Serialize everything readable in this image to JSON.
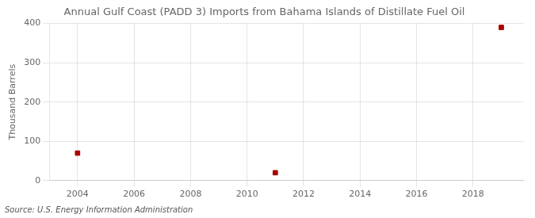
{
  "chart_data": {
    "type": "scatter",
    "title": "Annual Gulf Coast (PADD 3) Imports from Bahama Islands of Distillate Fuel Oil",
    "ylabel": "Thousand Barrels",
    "annotation": "Source: U.S. Energy Information Administration",
    "x": [
      2004,
      2011,
      2019
    ],
    "values": [
      70,
      20,
      390
    ],
    "color": "#aa0000",
    "marker": "square",
    "xlim": [
      2003.0,
      2019.8
    ],
    "ylim": [
      0,
      400
    ],
    "xticks": [
      2004,
      2006,
      2008,
      2010,
      2012,
      2014,
      2016,
      2018
    ],
    "yticks": [
      0,
      100,
      200,
      300,
      400
    ],
    "grid": true
  }
}
